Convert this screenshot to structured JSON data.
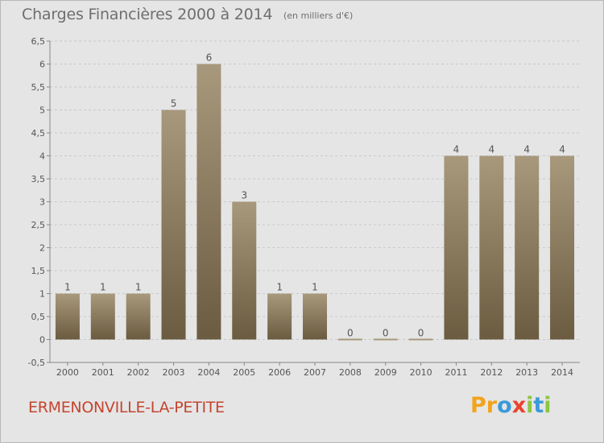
{
  "header": {
    "title": "Charges Financières 2000 à 2014",
    "subtitle": "(en milliers d'€)"
  },
  "footer": {
    "commune": "ERMENONVILLE-LA-PETITE",
    "logo": {
      "letters": [
        "P",
        "r",
        "o",
        "x",
        "i",
        "t",
        "i"
      ],
      "colors": [
        "#f2a31b",
        "#f2a31b",
        "#3b9ad9",
        "#e8442e",
        "#8cc63f",
        "#3b9ad9",
        "#8cc63f"
      ]
    }
  },
  "colors": {
    "bar_top": "#a8987c",
    "bar_bottom": "#6b5b40",
    "grid": "#c9c9c9",
    "axis": "#888888"
  },
  "chart_data": {
    "type": "bar",
    "categories": [
      "2000",
      "2001",
      "2002",
      "2003",
      "2004",
      "2005",
      "2006",
      "2007",
      "2008",
      "2009",
      "2010",
      "2011",
      "2012",
      "2013",
      "2014"
    ],
    "values": [
      1,
      1,
      1,
      5,
      6,
      3,
      1,
      1,
      0,
      0,
      0,
      4,
      4,
      4,
      4
    ],
    "value_labels": [
      "1",
      "1",
      "1",
      "5",
      "6",
      "3",
      "1",
      "1",
      "0",
      "0",
      "0",
      "4",
      "4",
      "4",
      "4"
    ],
    "yticks": [
      "-0,5",
      "0",
      "0,5",
      "1",
      "1,5",
      "2",
      "2,5",
      "3",
      "3,5",
      "4",
      "4,5",
      "5",
      "5,5",
      "6",
      "6,5"
    ],
    "ylim": [
      -0.5,
      6.5
    ],
    "grid": true,
    "legend": "none"
  }
}
